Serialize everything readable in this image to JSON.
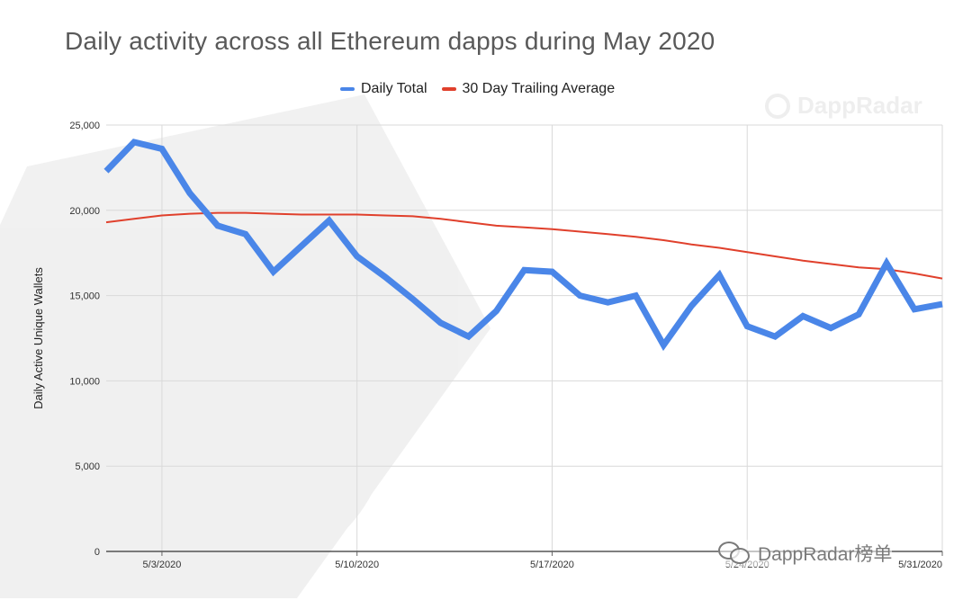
{
  "title": "Daily activity across all Ethereum dapps during May 2020",
  "watermark": {
    "brand_text": "DappRadar",
    "wechat_text": "DappRadar榜单"
  },
  "colors": {
    "daily_total": "#4a86e8",
    "trailing_average": "#e0402c",
    "grid": "#d9d9d9",
    "watermark": "#eeeeee",
    "axis_text": "#333333",
    "title_text": "#595959"
  },
  "icons": {
    "brand": "dappradar-logo-icon",
    "wechat": "wechat-icon"
  },
  "chart_data": {
    "type": "line",
    "title": "Daily activity across all Ethereum dapps during May 2020",
    "xlabel": "",
    "ylabel": "Daily Active Unique Wallets",
    "x_ticks": [
      "5/3/2020",
      "5/10/2020",
      "5/17/2020",
      "5/24/2020",
      "5/31/2020"
    ],
    "x_tick_dates": [
      3,
      10,
      17,
      24,
      31
    ],
    "x": [
      "5/1/2020",
      "5/2/2020",
      "5/3/2020",
      "5/4/2020",
      "5/5/2020",
      "5/6/2020",
      "5/7/2020",
      "5/8/2020",
      "5/9/2020",
      "5/10/2020",
      "5/11/2020",
      "5/12/2020",
      "5/13/2020",
      "5/14/2020",
      "5/15/2020",
      "5/16/2020",
      "5/17/2020",
      "5/18/2020",
      "5/19/2020",
      "5/20/2020",
      "5/21/2020",
      "5/22/2020",
      "5/23/2020",
      "5/24/2020",
      "5/25/2020",
      "5/26/2020",
      "5/27/2020",
      "5/28/2020",
      "5/29/2020",
      "5/30/2020",
      "5/31/2020"
    ],
    "xlim": [
      1,
      31
    ],
    "ylim": [
      0,
      25000
    ],
    "y_ticks": [
      "0",
      "5,000",
      "10,000",
      "15,000",
      "20,000",
      "25,000"
    ],
    "y_tick_values": [
      0,
      5000,
      10000,
      15000,
      20000,
      25000
    ],
    "grid": true,
    "legend_position": "top-center",
    "series": [
      {
        "name": "Daily Total",
        "color": "#4a86e8",
        "values": [
          22300,
          24000,
          23600,
          21000,
          19100,
          18600,
          16400,
          17900,
          19400,
          17300,
          16100,
          14800,
          13400,
          12600,
          14100,
          16500,
          16400,
          15000,
          14600,
          15000,
          12100,
          14400,
          16200,
          13200,
          12600,
          13800,
          13100,
          13900,
          16900,
          14200,
          14500
        ]
      },
      {
        "name": "30 Day Trailing Average",
        "color": "#e0402c",
        "values": [
          19300,
          19500,
          19700,
          19800,
          19850,
          19850,
          19800,
          19750,
          19750,
          19750,
          19700,
          19650,
          19500,
          19300,
          19100,
          19000,
          18900,
          18750,
          18600,
          18450,
          18250,
          18000,
          17800,
          17550,
          17300,
          17050,
          16850,
          16650,
          16550,
          16300,
          16000
        ]
      }
    ]
  }
}
